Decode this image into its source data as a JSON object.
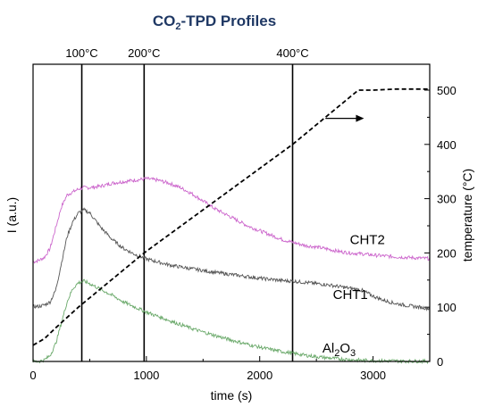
{
  "chart_data": {
    "type": "line",
    "title": "CO2-TPD Profiles",
    "xlabel": "time (s)",
    "ylabel_left": "I (a.u.)",
    "ylabel_right": "temperature (°C)",
    "xlim": [
      0,
      3500
    ],
    "ylim_right": [
      0,
      520
    ],
    "x_ticks": [
      0,
      1000,
      2000,
      3000
    ],
    "y_right_ticks": [
      0,
      100,
      200,
      300,
      400,
      500
    ],
    "reference_lines": [
      {
        "x": 430,
        "label": "100°C"
      },
      {
        "x": 980,
        "label": "200°C"
      },
      {
        "x": 2290,
        "label": "400°C"
      }
    ],
    "series": [
      {
        "name": "CHT2",
        "axis": "left",
        "color": "#cc66cc",
        "x": [
          0,
          50,
          100,
          150,
          200,
          250,
          300,
          350,
          400,
          450,
          500,
          600,
          700,
          800,
          900,
          1000,
          1100,
          1200,
          1300,
          1400,
          1500,
          1600,
          1700,
          1800,
          1900,
          2000,
          2100,
          2200,
          2300,
          2400,
          2500,
          2600,
          2700,
          2800,
          2900,
          3000,
          3100,
          3200,
          3300,
          3400,
          3500
        ],
        "y": [
          0.335,
          0.34,
          0.35,
          0.38,
          0.45,
          0.52,
          0.56,
          0.57,
          0.58,
          0.585,
          0.585,
          0.59,
          0.6,
          0.605,
          0.61,
          0.615,
          0.61,
          0.6,
          0.585,
          0.565,
          0.54,
          0.515,
          0.495,
          0.475,
          0.455,
          0.44,
          0.425,
          0.41,
          0.4,
          0.39,
          0.385,
          0.378,
          0.37,
          0.365,
          0.362,
          0.358,
          0.355,
          0.352,
          0.35,
          0.348,
          0.346
        ]
      },
      {
        "name": "CHT1",
        "axis": "left",
        "color": "#555555",
        "x": [
          0,
          50,
          100,
          150,
          200,
          250,
          300,
          350,
          400,
          450,
          500,
          600,
          700,
          800,
          900,
          1000,
          1100,
          1200,
          1300,
          1400,
          1500,
          1600,
          1700,
          1800,
          1900,
          2000,
          2100,
          2200,
          2300,
          2400,
          2500,
          2600,
          2700,
          2800,
          2900,
          3000,
          3100,
          3200,
          3300,
          3400,
          3500
        ],
        "y": [
          0.185,
          0.185,
          0.19,
          0.2,
          0.24,
          0.33,
          0.42,
          0.47,
          0.5,
          0.51,
          0.5,
          0.45,
          0.41,
          0.38,
          0.36,
          0.345,
          0.335,
          0.325,
          0.318,
          0.312,
          0.306,
          0.3,
          0.295,
          0.29,
          0.285,
          0.28,
          0.276,
          0.272,
          0.27,
          0.266,
          0.262,
          0.258,
          0.252,
          0.246,
          0.24,
          0.22,
          0.205,
          0.195,
          0.188,
          0.183,
          0.178
        ]
      },
      {
        "name": "Al2O3",
        "axis": "left",
        "color": "#6aa96a",
        "x": [
          0,
          50,
          100,
          150,
          200,
          250,
          300,
          350,
          400,
          450,
          500,
          600,
          700,
          800,
          900,
          1000,
          1100,
          1200,
          1300,
          1400,
          1500,
          1600,
          1700,
          1800,
          1900,
          2000,
          2100,
          2200,
          2300,
          2400,
          2500,
          2600,
          2700,
          2800,
          2900,
          3000,
          3100,
          3200,
          3300,
          3400,
          3500
        ],
        "y": [
          0.0,
          0.0,
          0.005,
          0.02,
          0.06,
          0.13,
          0.2,
          0.245,
          0.265,
          0.27,
          0.262,
          0.242,
          0.222,
          0.2,
          0.183,
          0.166,
          0.152,
          0.138,
          0.124,
          0.111,
          0.099,
          0.088,
          0.077,
          0.067,
          0.057,
          0.048,
          0.04,
          0.033,
          0.027,
          0.021,
          0.016,
          0.012,
          0.009,
          0.006,
          0.004,
          0.003,
          0.002,
          0.002,
          0.001,
          0.001,
          0.0
        ]
      },
      {
        "name": "temperature",
        "axis": "right",
        "color": "#000000",
        "style": "dashed",
        "x": [
          0,
          100,
          200,
          400,
          980,
          2290,
          2870,
          3000,
          3200,
          3500
        ],
        "y": [
          30,
          42,
          62,
          100,
          200,
          400,
          500,
          500,
          502,
          502
        ]
      }
    ],
    "series_labels": [
      {
        "text": "CHT2",
        "x": 2950,
        "y": 0.395
      },
      {
        "text": "CHT1",
        "x": 2800,
        "y": 0.21
      },
      {
        "text": "Al2O3",
        "x": 2700,
        "y": 0.03
      }
    ],
    "arrow": {
      "x_from": 2580,
      "x_to": 2920,
      "y_temp": 448
    }
  }
}
